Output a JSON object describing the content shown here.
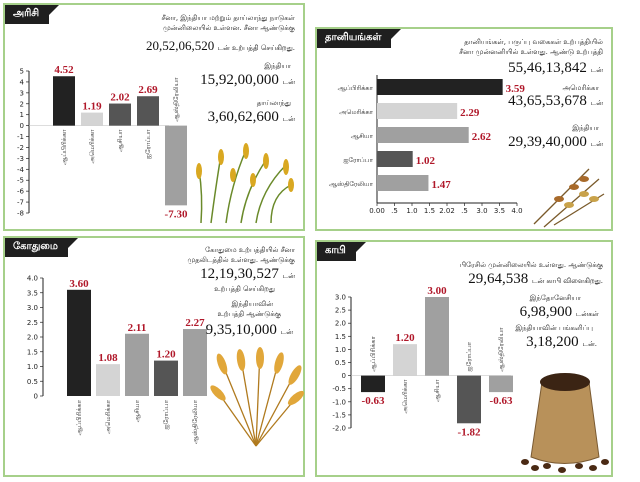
{
  "colors": {
    "border": "#a6d08a",
    "value": "#b0182a",
    "bar_dark": "#222222",
    "bar_mid": "#555555",
    "bar_light": "#a0a0a0",
    "bar_pale": "#d4d4d4"
  },
  "rice": {
    "tag": "அரிசி",
    "china_note_1": "சீனா, இந்தியா மற்றும் தாய்லாந்து நாடுகள்",
    "china_note_2": "முன்னிலையில் உள்ளன. சீனா ஆண்டுக்கு",
    "china_value": "20,52,06,520",
    "china_unit": "டன் உற்பத்தி செய்கிறது.",
    "india_label": "இந்தியா",
    "india_value": "15,92,00,000",
    "india_unit": "டன்",
    "thai_label": "தாய்லாந்து",
    "thai_value": "3,60,62,600",
    "thai_unit": "டன்"
  },
  "grains": {
    "tag": "தானியங்கள்",
    "note_1": "தானியங்கள், பருப்பு வகைகள் உற்பத்தியில்",
    "note_2": "சீனா முன்னனியில் உள்ளது. ஆண்டு உற்பத்தி",
    "china_value": "55,46,13,842",
    "china_unit": "டன்",
    "us_label": "அமெரிக்கா",
    "us_value": "43,65,53,678",
    "us_unit": "டன்",
    "india_label": "இந்தியா",
    "india_value": "29,39,40,000",
    "india_unit": "டன்"
  },
  "wheat": {
    "tag": "கோதுமை",
    "note_1": "கோதுமை உற்பத்தியில் சீனா",
    "note_2": "முதலிடத்தில் உள்ளது. ஆண்டுக்கு",
    "china_value": "12,19,30,527",
    "china_unit": "டன்",
    "china_note_3": "உற்பத்தி செய்கிறது",
    "india_label_1": "இந்தியாவின்",
    "india_label_2": "உற்பத்தி ஆண்டுக்கு",
    "india_value": "9,35,10,000",
    "india_unit": "டன்"
  },
  "coffee": {
    "tag": "காபி",
    "brazil_note": "பிரேசில் முன்னிலையில் உள்ளது. ஆண்டுக்கு",
    "brazil_value": "29,64,538",
    "brazil_unit": "டன் காபி விளைகிறது.",
    "indo_label": "இந்தோனேசியா",
    "indo_value": "6,98,900",
    "indo_unit": "டன்கள்",
    "india_label": "இந்தியாவின் பங்களிப்பு",
    "india_value": "3,18,200",
    "india_unit": "டன்."
  },
  "chart_data": [
    {
      "type": "bar",
      "panel": "rice",
      "categories": [
        "ஆப்பிரிக்கா",
        "அமெரிக்கா",
        "ஆசியா",
        "ஐரோப்பா",
        "ஆஸ்திரேலியா"
      ],
      "values": [
        4.52,
        1.19,
        2.02,
        2.69,
        -7.3
      ],
      "value_labels": [
        "4.52",
        "1.19",
        "2.02",
        "2.69",
        "-7.30"
      ],
      "ticks": [
        "5",
        "4",
        "3",
        "2",
        "1",
        "0",
        "-1",
        "-2",
        "-3",
        "-4",
        "-5",
        "-6",
        "-7",
        "-8"
      ],
      "ylim": [
        -8,
        5
      ],
      "bar_colors": [
        "#222222",
        "#d4d4d4",
        "#555555",
        "#555555",
        "#a0a0a0"
      ]
    },
    {
      "type": "bar",
      "orientation": "horizontal",
      "panel": "grains",
      "categories": [
        "ஆப்பிரிக்கா",
        "அமெரிக்கா",
        "ஆசியா",
        "ஐரோப்பா",
        "ஆஸ்திரேலியா"
      ],
      "values": [
        3.59,
        2.29,
        2.62,
        1.02,
        1.47
      ],
      "value_labels": [
        "3.59",
        "2.29",
        "2.62",
        "1.02",
        "1.47"
      ],
      "ticks": [
        "0.00",
        ".5",
        "1.0",
        "1.5",
        "2.02",
        ".5",
        "3.0",
        "3.5",
        "4.0"
      ],
      "xlim": [
        0,
        4
      ],
      "bar_colors": [
        "#222222",
        "#d4d4d4",
        "#a0a0a0",
        "#555555",
        "#a0a0a0"
      ]
    },
    {
      "type": "bar",
      "panel": "wheat",
      "categories": [
        "ஆப்பிரிக்கா",
        "அமெரிக்கா",
        "ஆசியா",
        "ஐரோப்பா",
        "ஆஸ்திரேலியா"
      ],
      "values": [
        3.6,
        1.08,
        2.11,
        1.2,
        2.27
      ],
      "value_labels": [
        "3.60",
        "1.08",
        "2.11",
        "1.20",
        "2.27"
      ],
      "ticks": [
        "4.0",
        "3.5",
        "3.0",
        "2.5",
        "2.0",
        "1.5",
        "1.0",
        "0.5",
        "0"
      ],
      "ylim": [
        0,
        4
      ],
      "bar_colors": [
        "#222222",
        "#d4d4d4",
        "#a0a0a0",
        "#555555",
        "#a0a0a0"
      ]
    },
    {
      "type": "bar",
      "panel": "coffee",
      "categories": [
        "ஆப்பிரிக்கா",
        "அமெரிக்கா",
        "ஆசியா",
        "ஐரோப்பா",
        "ஆஸ்திரேலியா"
      ],
      "values": [
        -0.63,
        1.2,
        3.0,
        -1.82,
        -0.63
      ],
      "value_labels": [
        "-0.63",
        "1.20",
        "3.00",
        "-1.82",
        "-0.63"
      ],
      "ticks": [
        "3.0",
        "2.5",
        "2.0",
        "1.5",
        "1.0",
        "0.5",
        "0",
        "-0.5",
        "-1.0",
        "-1.5",
        "-2.0"
      ],
      "ylim": [
        -2,
        3
      ],
      "bar_colors": [
        "#222222",
        "#d4d4d4",
        "#a0a0a0",
        "#555555",
        "#a0a0a0"
      ]
    }
  ]
}
